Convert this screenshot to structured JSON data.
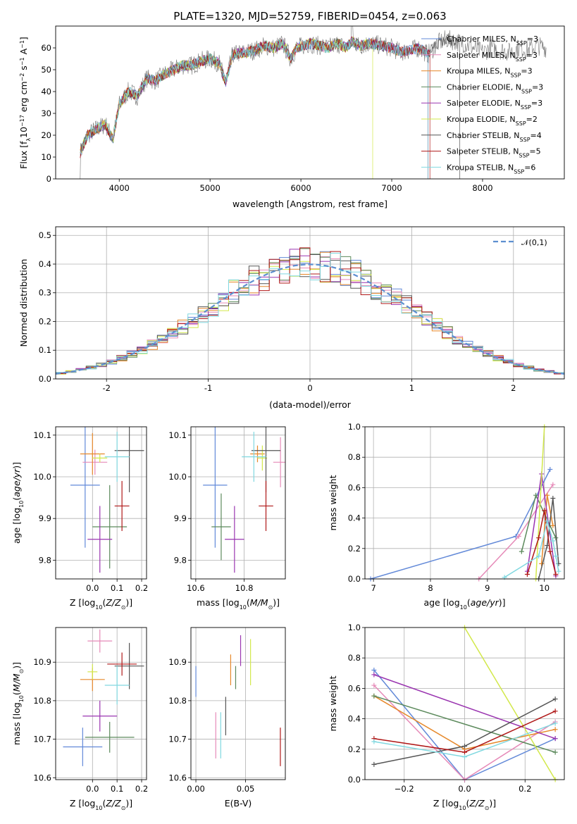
{
  "title": "PLATE=1320, MJD=52759, FIBERID=0454, z=0.063",
  "models": [
    {
      "name": "Chabrier MILES, N_SSP=3",
      "base": "Chabrier MILES, N",
      "sub": "SSP",
      "post": "=3",
      "color": "#6289d8"
    },
    {
      "name": "Salpeter MILES, N_SSP=3",
      "base": "Salpeter MILES, N",
      "sub": "SSP",
      "post": "=3",
      "color": "#e68ab8"
    },
    {
      "name": "Kroupa MILES, N_SSP=3",
      "base": "Kroupa MILES, N",
      "sub": "SSP",
      "post": "=3",
      "color": "#e6882a"
    },
    {
      "name": "Chabrier ELODIE, N_SSP=3",
      "base": "Chabrier ELODIE, N",
      "sub": "SSP",
      "post": "=3",
      "color": "#5c8a5c"
    },
    {
      "name": "Salpeter ELODIE, N_SSP=3",
      "base": "Salpeter ELODIE, N",
      "sub": "SSP",
      "post": "=3",
      "color": "#9a35b0"
    },
    {
      "name": "Kroupa ELODIE, N_SSP=2",
      "base": "Kroupa ELODIE, N",
      "sub": "SSP",
      "post": "=2",
      "color": "#d2e84a"
    },
    {
      "name": "Chabrier STELIB, N_SSP=4",
      "base": "Chabrier STELIB, N",
      "sub": "SSP",
      "post": "=4",
      "color": "#555555"
    },
    {
      "name": "Salpeter STELIB, N_SSP=5",
      "base": "Salpeter STELIB, N",
      "sub": "SSP",
      "post": "=5",
      "color": "#b01818"
    },
    {
      "name": "Kroupa STELIB, N_SSP=6",
      "base": "Kroupa STELIB, N",
      "sub": "SSP",
      "post": "=6",
      "color": "#80d8e0"
    }
  ],
  "chart_data": [
    {
      "type": "line",
      "panel": "spectrum",
      "xlabel": "wavelength [Angstrom, rest frame]",
      "ylabel": "Flux [f_λ 10^-17 erg cm^-2 s^-1 A^-1]",
      "xlim": [
        3300,
        8900
      ],
      "ylim": [
        0,
        70
      ],
      "xticks": [
        4000,
        5000,
        6000,
        7000,
        8000
      ],
      "yticks": [
        0,
        10,
        20,
        30,
        40,
        50,
        60
      ],
      "grid": false,
      "legend": "right",
      "x": [
        3570,
        3650,
        3750,
        3850,
        3930,
        4000,
        4100,
        4200,
        4300,
        4400,
        4500,
        4600,
        4700,
        4800,
        4900,
        5000,
        5100,
        5170,
        5250,
        5400,
        5500,
        5600,
        5700,
        5800,
        5890,
        5950,
        6100,
        6200,
        6300,
        6400,
        6500,
        6563,
        6650,
        6750,
        6900,
        7000,
        7100,
        7200,
        7300,
        7400,
        7500,
        7600,
        7700,
        7800,
        7900,
        8000,
        8100,
        8200,
        8300,
        8400,
        8500,
        8600,
        8700
      ],
      "flux": [
        12,
        20,
        23,
        25,
        18,
        34,
        40,
        38,
        46,
        45,
        48,
        50,
        52,
        52,
        54,
        55,
        53,
        44,
        57,
        58,
        59,
        61,
        60,
        62,
        55,
        60,
        62,
        61,
        60,
        62,
        60,
        63,
        61,
        62,
        61,
        60,
        58,
        59,
        60,
        57,
        62,
        64,
        63,
        62,
        60,
        58,
        60,
        59,
        58,
        60,
        59,
        61,
        60
      ],
      "model_cutoffs": [
        7400,
        7400,
        7400,
        7400,
        7400,
        6790,
        7750,
        7420,
        7400
      ]
    },
    {
      "type": "area",
      "panel": "residual-histogram",
      "xlabel": "(data-model)/error",
      "ylabel": "Normed distribution",
      "xlim": [
        -2.5,
        2.5
      ],
      "ylim": [
        0,
        0.53
      ],
      "xticks": [
        -2,
        -1,
        0,
        1,
        2
      ],
      "yticks": [
        0.0,
        0.1,
        0.2,
        0.3,
        0.4,
        0.5
      ],
      "grid": true,
      "legend_label": "𝒩(0,1)",
      "bin_width": 0.1
    },
    {
      "type": "scatter",
      "panel": "age-vs-Z",
      "xlabel": "Z [log10(Z/Z⊙)]",
      "ylabel": "age [log10(age/yr)]",
      "xlim": [
        -0.15,
        0.22
      ],
      "ylim": [
        9.755,
        10.12
      ],
      "xticks": [
        0.0,
        0.1,
        0.2
      ],
      "yticks": [
        9.8,
        9.9,
        10.0,
        10.1
      ],
      "points": [
        {
          "x": -0.03,
          "xerr": 0.06,
          "y": 9.98,
          "yerr": 0.15
        },
        {
          "x": 0.01,
          "xerr": 0.05,
          "y": 10.035,
          "yerr": 0.03
        },
        {
          "x": 0.0,
          "xerr": 0.05,
          "y": 10.055,
          "yerr": 0.05
        },
        {
          "x": 0.07,
          "xerr": 0.07,
          "y": 9.88,
          "yerr": 0.1
        },
        {
          "x": 0.03,
          "xerr": 0.05,
          "y": 9.85,
          "yerr": 0.08
        },
        {
          "x": 0.03,
          "xerr": 0.03,
          "y": 10.045,
          "yerr": 0.01
        },
        {
          "x": 0.15,
          "xerr": 0.06,
          "y": 10.063,
          "yerr": 0.1
        },
        {
          "x": 0.12,
          "xerr": 0.03,
          "y": 9.93,
          "yerr": 0.06
        },
        {
          "x": 0.1,
          "xerr": 0.05,
          "y": 10.048,
          "yerr": 0.06
        }
      ]
    },
    {
      "type": "scatter",
      "panel": "age-vs-mass",
      "xlabel": "mass [log10(M/M⊙)]",
      "xlim": [
        10.58,
        10.97
      ],
      "ylim": [
        9.755,
        10.12
      ],
      "xticks": [
        10.6,
        10.8
      ],
      "yticks": [
        9.8,
        9.9,
        10.0,
        10.1
      ],
      "points": [
        {
          "x": 10.68,
          "xerr": 0.05,
          "y": 9.98,
          "yerr": 0.15
        },
        {
          "x": 10.95,
          "xerr": 0.03,
          "y": 10.035,
          "yerr": 0.06
        },
        {
          "x": 10.855,
          "xerr": 0.03,
          "y": 10.055,
          "yerr": 0.02
        },
        {
          "x": 10.705,
          "xerr": 0.04,
          "y": 9.88,
          "yerr": 0.08
        },
        {
          "x": 10.76,
          "xerr": 0.04,
          "y": 9.85,
          "yerr": 0.08
        },
        {
          "x": 10.875,
          "xerr": 0.02,
          "y": 10.045,
          "yerr": 0.03
        },
        {
          "x": 10.89,
          "xerr": 0.06,
          "y": 10.063,
          "yerr": 0.1
        },
        {
          "x": 10.89,
          "xerr": 0.03,
          "y": 9.93,
          "yerr": 0.06
        },
        {
          "x": 10.84,
          "xerr": 0.05,
          "y": 10.048,
          "yerr": 0.06
        }
      ]
    },
    {
      "type": "line",
      "panel": "mass-weight-vs-age",
      "xlabel": "age [log10(age/yr)]",
      "ylabel": "mass weight",
      "xlim": [
        6.85,
        10.35
      ],
      "ylim": [
        0,
        1
      ],
      "xticks": [
        7,
        8,
        9,
        10
      ],
      "yticks": [
        0.0,
        0.2,
        0.4,
        0.6,
        0.8,
        1.0
      ],
      "series": [
        {
          "x": [
            6.95,
            9.5,
            10.1
          ],
          "y": [
            0.0,
            0.28,
            0.72
          ]
        },
        {
          "x": [
            8.85,
            9.55,
            10.15
          ],
          "y": [
            0.0,
            0.28,
            0.62
          ]
        },
        {
          "x": [
            9.95,
            10.05,
            10.15
          ],
          "y": [
            0.1,
            0.55,
            0.35
          ]
        },
        {
          "x": [
            9.6,
            9.85,
            10.2
          ],
          "y": [
            0.18,
            0.55,
            0.27
          ]
        },
        {
          "x": [
            9.7,
            9.95,
            10.2
          ],
          "y": [
            0.05,
            0.69,
            0.02
          ]
        },
        {
          "x": [
            9.85,
            10.0
          ],
          "y": [
            0.0,
            1.0
          ]
        },
        {
          "x": [
            9.9,
            10.05,
            10.15,
            10.25
          ],
          "y": [
            0.0,
            0.22,
            0.53,
            0.1
          ]
        },
        {
          "x": [
            9.7,
            9.9,
            10.0,
            10.1,
            10.2
          ],
          "y": [
            0.03,
            0.27,
            0.45,
            0.18,
            0.03
          ]
        },
        {
          "x": [
            9.3,
            9.9,
            10.05,
            10.15,
            10.2,
            10.25
          ],
          "y": [
            0.01,
            0.15,
            0.38,
            0.25,
            0.15,
            0.05
          ]
        }
      ]
    },
    {
      "type": "scatter",
      "panel": "mass-vs-Z",
      "xlabel": "Z [log10(Z/Z⊙)]",
      "ylabel": "mass [log10(M/M⊙)]",
      "xlim": [
        -0.15,
        0.22
      ],
      "ylim": [
        10.595,
        10.99
      ],
      "xticks": [
        0.0,
        0.1,
        0.2
      ],
      "yticks": [
        10.6,
        10.7,
        10.8,
        10.9
      ],
      "points": [
        {
          "x": -0.04,
          "xerr": 0.08,
          "y": 10.68,
          "yerr": 0.05
        },
        {
          "x": 0.03,
          "xerr": 0.05,
          "y": 10.955,
          "yerr": 0.03
        },
        {
          "x": 0.0,
          "xerr": 0.05,
          "y": 10.855,
          "yerr": 0.03
        },
        {
          "x": 0.07,
          "xerr": 0.1,
          "y": 10.705,
          "yerr": 0.04
        },
        {
          "x": 0.03,
          "xerr": 0.07,
          "y": 10.76,
          "yerr": 0.04
        },
        {
          "x": 0.0,
          "xerr": 0.02,
          "y": 10.875,
          "yerr": 0.02
        },
        {
          "x": 0.15,
          "xerr": 0.06,
          "y": 10.89,
          "yerr": 0.06
        },
        {
          "x": 0.12,
          "xerr": 0.06,
          "y": 10.895,
          "yerr": 0.03
        },
        {
          "x": 0.1,
          "xerr": 0.05,
          "y": 10.84,
          "yerr": 0.05
        }
      ]
    },
    {
      "type": "scatter",
      "panel": "mass-vs-EBV",
      "xlabel": "E(B-V)",
      "xlim": [
        -0.005,
        0.09
      ],
      "ylim": [
        10.595,
        10.99
      ],
      "xticks": [
        0.0,
        0.05
      ],
      "yticks": [
        10.6,
        10.7,
        10.8,
        10.9
      ],
      "points": [
        {
          "x": 0.0,
          "y": 10.85,
          "yerr": 0.04
        },
        {
          "x": 0.02,
          "y": 10.71,
          "yerr": 0.06
        },
        {
          "x": 0.035,
          "y": 10.88,
          "yerr": 0.04
        },
        {
          "x": 0.04,
          "y": 10.86,
          "yerr": 0.03
        },
        {
          "x": 0.045,
          "y": 10.93,
          "yerr": 0.04
        },
        {
          "x": 0.055,
          "y": 10.9,
          "yerr": 0.06
        },
        {
          "x": 0.03,
          "y": 10.76,
          "yerr": 0.05
        },
        {
          "x": 0.085,
          "y": 10.68,
          "yerr": 0.05
        },
        {
          "x": 0.025,
          "y": 10.71,
          "yerr": 0.06
        }
      ]
    },
    {
      "type": "line",
      "panel": "mass-weight-vs-Z",
      "xlabel": "Z [log10(Z/Z⊙)]",
      "ylabel": "mass weight",
      "xlim": [
        -0.33,
        0.33
      ],
      "ylim": [
        0,
        1
      ],
      "xticks": [
        -0.2,
        0.0,
        0.2
      ],
      "yticks": [
        0.0,
        0.2,
        0.4,
        0.6,
        0.8,
        1.0
      ],
      "series": [
        {
          "x": [
            -0.3,
            0.0,
            0.3
          ],
          "y": [
            0.72,
            0.0,
            0.27
          ]
        },
        {
          "x": [
            -0.3,
            0.0,
            0.3
          ],
          "y": [
            0.62,
            0.0,
            0.38
          ]
        },
        {
          "x": [
            -0.3,
            0.0,
            0.3
          ],
          "y": [
            0.55,
            0.2,
            0.33
          ]
        },
        {
          "x": [
            -0.3,
            0.3
          ],
          "y": [
            0.55,
            0.18
          ]
        },
        {
          "x": [
            -0.3,
            0.3
          ],
          "y": [
            0.69,
            0.27
          ]
        },
        {
          "x": [
            0.0,
            0.3
          ],
          "y": [
            1.0,
            0.0
          ]
        },
        {
          "x": [
            -0.3,
            0.0,
            0.3
          ],
          "y": [
            0.1,
            0.22,
            0.53
          ]
        },
        {
          "x": [
            -0.3,
            0.0,
            0.3
          ],
          "y": [
            0.27,
            0.18,
            0.45
          ]
        },
        {
          "x": [
            -0.3,
            0.0,
            0.3
          ],
          "y": [
            0.25,
            0.15,
            0.37
          ]
        }
      ]
    }
  ]
}
